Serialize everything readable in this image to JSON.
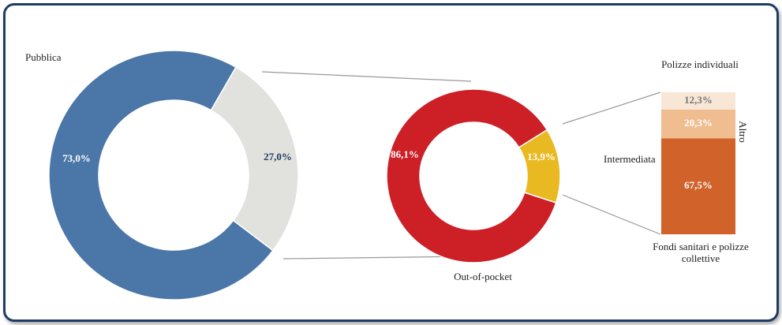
{
  "chart_data": [
    {
      "type": "donut",
      "categories": [
        "Pubblica",
        null
      ],
      "values": [
        73.0,
        27.0
      ],
      "value_labels": [
        "73,0%",
        "27,0%"
      ],
      "colors": [
        "#4a76a8",
        "#e1e1dd"
      ],
      "label_colors": [
        "#ffffff",
        "#1f3d64"
      ]
    },
    {
      "type": "donut",
      "categories": [
        "Out-of-pocket",
        "Intermediata"
      ],
      "values": [
        86.1,
        13.9
      ],
      "value_labels": [
        "86,1%",
        "13,9%"
      ],
      "colors": [
        "#cc1f26",
        "#e9b921"
      ],
      "label_colors": [
        "#ffffff",
        "#ffffff"
      ]
    },
    {
      "type": "bar",
      "stacked": true,
      "series": [
        {
          "name": "Fondi sanitari e polizze collettive",
          "color": "#d0622a",
          "values": [
            67.5
          ],
          "value_labels": [
            "67,5%"
          ]
        },
        {
          "name": "Altro",
          "color": "#efbd8f",
          "values": [
            20.3
          ],
          "value_labels": [
            "20,3%"
          ]
        },
        {
          "name": "Polizze individuali",
          "color": "#f8e7d7",
          "values": [
            12.3
          ],
          "value_labels": [
            "12,3%"
          ]
        }
      ]
    }
  ]
}
